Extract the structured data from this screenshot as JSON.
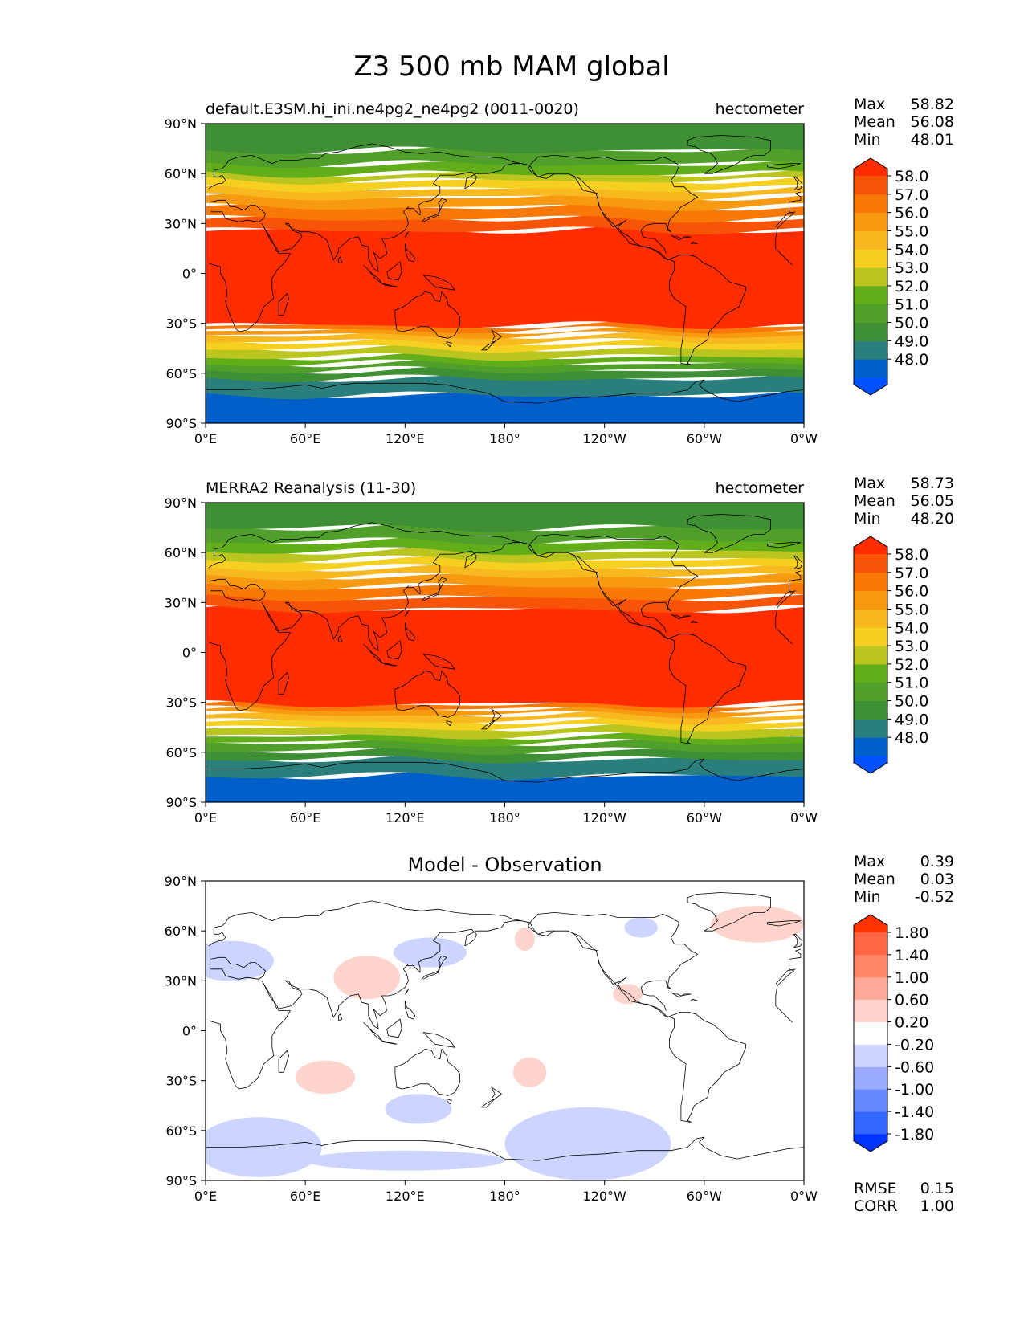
{
  "title": "Z3 500 mb MAM global",
  "colors": {
    "field_levels": [
      "#0050ff",
      "#005fc8",
      "#2a7f7c",
      "#3f8f35",
      "#4f9f2a",
      "#62ad1a",
      "#bac520",
      "#f5d020",
      "#f8b820",
      "#f89a10",
      "#f87808",
      "#f85408",
      "#ff2d00"
    ],
    "diff_levels": [
      "#0033ff",
      "#3366ff",
      "#6688ff",
      "#99aaff",
      "#ccd4ff",
      "#ffffff",
      "#ffd4cc",
      "#ffaa99",
      "#ff8866",
      "#ff6644",
      "#ff3300"
    ],
    "coastline": "#000000"
  },
  "chart_data": [
    {
      "type": "heatmap",
      "projection": "cylindrical",
      "title_left": "default.E3SM.hi_ini.ne4pg2_ne4pg2 (0011-0020)",
      "title_right": "hectometer",
      "stats": {
        "labels": [
          "Max",
          "Mean",
          "Min"
        ],
        "values": [
          "58.82",
          "56.08",
          "48.01"
        ]
      },
      "colorbar": {
        "ticks": [
          "58.0",
          "57.0",
          "56.0",
          "55.0",
          "54.0",
          "53.0",
          "52.0",
          "51.0",
          "50.0",
          "49.0",
          "48.0"
        ]
      },
      "x_ticks": [
        "0°E",
        "60°E",
        "120°E",
        "180°",
        "120°W",
        "60°W",
        "0°W"
      ],
      "y_ticks": [
        "90°N",
        "60°N",
        "30°N",
        "0°",
        "30°S",
        "60°S",
        "90°S"
      ],
      "xlim": [
        0,
        360
      ],
      "ylim": [
        -90,
        90
      ],
      "band_boundaries_lat": [
        -73,
        -63,
        -58,
        -54,
        -50,
        -45,
        -41,
        -37,
        -34,
        -31,
        26,
        33,
        40,
        46,
        51,
        56,
        60,
        66,
        74
      ]
    },
    {
      "type": "heatmap",
      "projection": "cylindrical",
      "title_left": "MERRA2 Reanalysis (11-30)",
      "title_right": "hectometer",
      "stats": {
        "labels": [
          "Max",
          "Mean",
          "Min"
        ],
        "values": [
          "58.73",
          "56.05",
          "48.20"
        ]
      },
      "colorbar": {
        "ticks": [
          "58.0",
          "57.0",
          "56.0",
          "55.0",
          "54.0",
          "53.0",
          "52.0",
          "51.0",
          "50.0",
          "49.0",
          "48.0"
        ]
      },
      "x_ticks": [
        "0°E",
        "60°E",
        "120°E",
        "180°",
        "120°W",
        "60°W",
        "0°W"
      ],
      "y_ticks": [
        "90°N",
        "60°N",
        "30°N",
        "0°",
        "30°S",
        "60°S",
        "90°S"
      ],
      "xlim": [
        0,
        360
      ],
      "ylim": [
        -90,
        90
      ],
      "band_boundaries_lat": [
        -74,
        -64,
        -59,
        -54,
        -50,
        -45,
        -41,
        -37,
        -34,
        -31,
        26,
        33,
        40,
        46,
        51,
        56,
        61,
        67,
        75
      ]
    },
    {
      "type": "heatmap",
      "projection": "cylindrical",
      "title_center": "Model - Observation",
      "stats": {
        "labels": [
          "Max",
          "Mean",
          "Min"
        ],
        "values": [
          "0.39",
          "0.03",
          "-0.52"
        ]
      },
      "colorbar": {
        "ticks": [
          "1.80",
          "1.40",
          "1.00",
          "0.60",
          "0.20",
          "-0.20",
          "-0.60",
          "-1.00",
          "-1.40",
          "-1.80"
        ]
      },
      "metrics": {
        "labels": [
          "RMSE",
          "CORR"
        ],
        "values": [
          "0.15",
          "1.00"
        ]
      },
      "x_ticks": [
        "0°E",
        "60°E",
        "120°E",
        "180°",
        "120°W",
        "60°W",
        "0°W"
      ],
      "y_ticks": [
        "90°N",
        "60°N",
        "30°N",
        "0°",
        "30°S",
        "60°S",
        "90°S"
      ],
      "xlim": [
        0,
        360
      ],
      "ylim": [
        -90,
        90
      ],
      "anomalies": [
        {
          "sign": "positive",
          "lon_center": 97,
          "lat_center": 32,
          "lon_radius": 20,
          "lat_radius": 13
        },
        {
          "sign": "positive",
          "lon_center": 72,
          "lat_center": -28,
          "lon_radius": 18,
          "lat_radius": 10
        },
        {
          "sign": "positive",
          "lon_center": 195,
          "lat_center": -25,
          "lon_radius": 10,
          "lat_radius": 9
        },
        {
          "sign": "positive",
          "lon_center": 192,
          "lat_center": 55,
          "lon_radius": 6,
          "lat_radius": 7
        },
        {
          "sign": "positive",
          "lon_center": 254,
          "lat_center": 22,
          "lon_radius": 9,
          "lat_radius": 6
        },
        {
          "sign": "positive",
          "lon_center": 332,
          "lat_center": 64,
          "lon_radius": 28,
          "lat_radius": 11
        },
        {
          "sign": "negative",
          "lon_center": 135,
          "lat_center": 47,
          "lon_radius": 22,
          "lat_radius": 9
        },
        {
          "sign": "negative",
          "lon_center": 262,
          "lat_center": 62,
          "lon_radius": 10,
          "lat_radius": 6
        },
        {
          "sign": "negative",
          "lon_center": 15,
          "lat_center": 42,
          "lon_radius": 26,
          "lat_radius": 12
        },
        {
          "sign": "negative",
          "lon_center": 128,
          "lat_center": -47,
          "lon_radius": 20,
          "lat_radius": 9
        },
        {
          "sign": "negative",
          "lon_center": 32,
          "lat_center": -70,
          "lon_radius": 38,
          "lat_radius": 18
        },
        {
          "sign": "negative",
          "lon_center": 120,
          "lat_center": -78,
          "lon_radius": 60,
          "lat_radius": 6
        },
        {
          "sign": "negative",
          "lon_center": 230,
          "lat_center": -68,
          "lon_radius": 50,
          "lat_radius": 22
        }
      ]
    }
  ]
}
